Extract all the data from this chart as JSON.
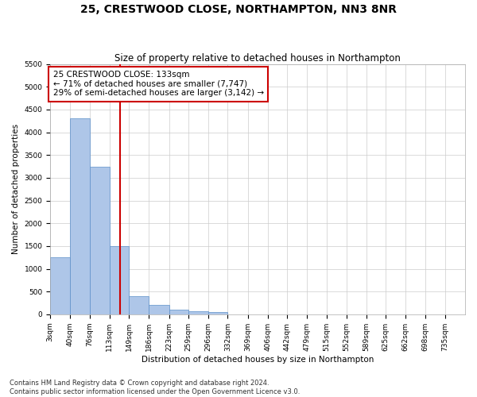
{
  "title": "25, CRESTWOOD CLOSE, NORTHAMPTON, NN3 8NR",
  "subtitle": "Size of property relative to detached houses in Northampton",
  "xlabel": "Distribution of detached houses by size in Northampton",
  "ylabel": "Number of detached properties",
  "footnote1": "Contains HM Land Registry data © Crown copyright and database right 2024.",
  "footnote2": "Contains public sector information licensed under the Open Government Licence v3.0.",
  "annotation_title": "25 CRESTWOOD CLOSE: 133sqm",
  "annotation_line1": "← 71% of detached houses are smaller (7,747)",
  "annotation_line2": "29% of semi-detached houses are larger (3,142) →",
  "property_size": 133,
  "bar_left_edges": [
    3,
    40,
    76,
    113,
    149,
    186,
    223,
    259,
    296,
    332,
    369,
    406,
    442,
    479,
    515,
    552,
    589,
    625,
    662,
    698,
    735
  ],
  "bar_widths": [
    37,
    36,
    37,
    36,
    37,
    37,
    36,
    37,
    36,
    37,
    37,
    36,
    37,
    36,
    37,
    37,
    36,
    37,
    36,
    37,
    37
  ],
  "bar_heights": [
    1250,
    4300,
    3250,
    1500,
    400,
    200,
    100,
    75,
    50,
    0,
    0,
    0,
    0,
    0,
    0,
    0,
    0,
    0,
    0,
    0,
    0
  ],
  "bar_color": "#aec6e8",
  "bar_edge_color": "#5b8fc9",
  "vline_x": 133,
  "vline_color": "#cc0000",
  "vline_linewidth": 1.5,
  "annotation_box_color": "#cc0000",
  "annotation_text_color": "#000000",
  "ylim": [
    0,
    5500
  ],
  "yticks": [
    0,
    500,
    1000,
    1500,
    2000,
    2500,
    3000,
    3500,
    4000,
    4500,
    5000,
    5500
  ],
  "xlim": [
    3,
    772
  ],
  "background_color": "#ffffff",
  "grid_color": "#cccccc",
  "title_fontsize": 10,
  "subtitle_fontsize": 8.5,
  "axis_label_fontsize": 7.5,
  "tick_fontsize": 6.5,
  "annotation_fontsize": 7.5,
  "footnote_fontsize": 6
}
